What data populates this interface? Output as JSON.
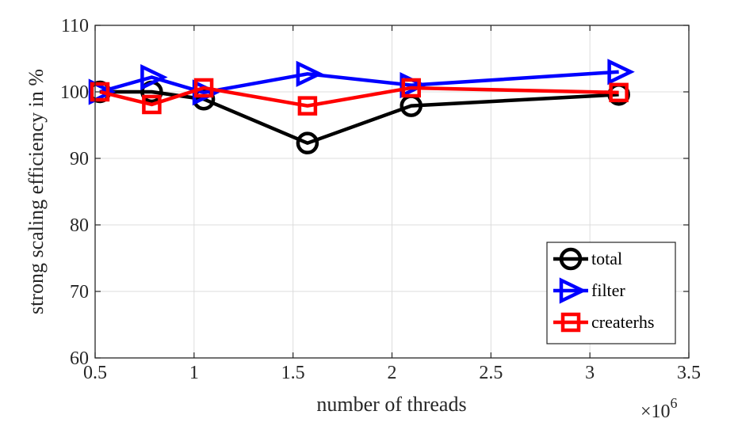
{
  "chart_data": {
    "type": "line",
    "xlabel": "number of threads",
    "ylabel": "strong scaling efficiency in %",
    "x_exponent_label": "×10",
    "x_exponent_power": "6",
    "xlim": [
      0.5,
      3.5
    ],
    "ylim": [
      60,
      110
    ],
    "x_ticks": [
      "0.5",
      "1",
      "1.5",
      "2",
      "2.5",
      "3",
      "3.5"
    ],
    "y_ticks": [
      "60",
      "70",
      "80",
      "90",
      "100",
      "110"
    ],
    "grid": true,
    "legend_position": "bottom-right",
    "series": [
      {
        "name": "total",
        "color": "#000000",
        "marker": "circle",
        "x": [
          0.524,
          0.786,
          1.049,
          1.573,
          2.097,
          3.146
        ],
        "y": [
          100.0,
          100.0,
          98.9,
          92.3,
          97.9,
          99.6
        ]
      },
      {
        "name": "filter",
        "color": "#0000ff",
        "marker": "triangle-right",
        "x": [
          0.524,
          0.786,
          1.049,
          1.573,
          2.097,
          3.146
        ],
        "y": [
          100.0,
          102.2,
          99.9,
          102.7,
          101.0,
          103.0
        ]
      },
      {
        "name": "createrhs",
        "color": "#ff0000",
        "marker": "square",
        "x": [
          0.524,
          0.786,
          1.049,
          1.573,
          2.097,
          3.146
        ],
        "y": [
          100.0,
          98.1,
          100.6,
          97.9,
          100.6,
          99.9
        ]
      }
    ]
  }
}
